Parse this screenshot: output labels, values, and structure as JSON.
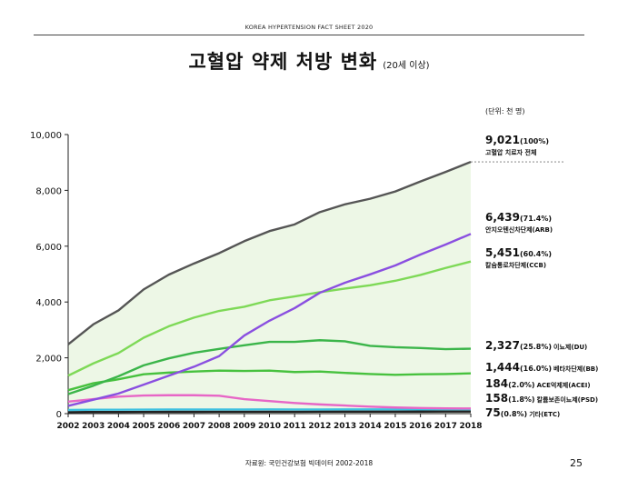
{
  "header": {
    "text": "KOREA HYPERTENSION FACT SHEET 2020"
  },
  "title": {
    "main": "고혈압 약제 처방 변화",
    "sub": "(20세 이상)"
  },
  "unit_label": "(단위: 천 명)",
  "footer": {
    "source": "자료원: 국민건강보험 빅데이터 2002-2018",
    "page": "25"
  },
  "chart_data": {
    "type": "line",
    "x": [
      2002,
      2003,
      2004,
      2005,
      2006,
      2007,
      2008,
      2009,
      2010,
      2011,
      2012,
      2013,
      2014,
      2015,
      2016,
      2017,
      2018
    ],
    "ylim": [
      0,
      10000
    ],
    "yticks": [
      "0",
      "2,000",
      "4,000",
      "6,000",
      "8,000",
      "10,000"
    ],
    "ytick_values": [
      0,
      2000,
      4000,
      6000,
      8000,
      10000
    ],
    "grid": false,
    "series": [
      {
        "name": "고혈압 치료자 전체",
        "label_value": "9,021",
        "label_pct": "(100%)",
        "color": "#555555",
        "fill": "#edf7e6",
        "values": [
          2480,
          3200,
          3700,
          4450,
          4980,
          5380,
          5750,
          6180,
          6540,
          6780,
          7220,
          7500,
          7700,
          7960,
          8320,
          8660,
          9021
        ]
      },
      {
        "name": "안지오텐신차단제(ARB)",
        "label_value": "6,439",
        "label_pct": "(71.4%)",
        "color": "#8a4fe0",
        "values": [
          280,
          500,
          720,
          1040,
          1360,
          1680,
          2060,
          2800,
          3330,
          3780,
          4330,
          4690,
          4990,
          5310,
          5700,
          6060,
          6439
        ]
      },
      {
        "name": "칼슘통로차단제(CCB)",
        "label_value": "5,451",
        "label_pct": "(60.4%)",
        "color": "#7ed957",
        "values": [
          1360,
          1800,
          2170,
          2720,
          3130,
          3440,
          3680,
          3830,
          4060,
          4200,
          4350,
          4480,
          4600,
          4760,
          4970,
          5220,
          5451
        ]
      },
      {
        "name": "이뇨제(DU)",
        "label_value": "2,327",
        "label_pct": "(25.8%)",
        "color": "#3bb54a",
        "values": [
          700,
          1000,
          1340,
          1730,
          1980,
          2180,
          2320,
          2450,
          2570,
          2570,
          2630,
          2590,
          2430,
          2380,
          2350,
          2310,
          2327
        ]
      },
      {
        "name": "베타차단제(BB)",
        "label_value": "1,444",
        "label_pct": "(16.0%)",
        "color": "#47c13e",
        "values": [
          840,
          1090,
          1230,
          1410,
          1470,
          1510,
          1540,
          1530,
          1540,
          1490,
          1510,
          1460,
          1420,
          1390,
          1410,
          1420,
          1444
        ]
      },
      {
        "name": "ACE억제제(ACEI)",
        "label_value": "184",
        "label_pct": "(2.0%)",
        "color": "#e766c6",
        "values": [
          430,
          520,
          610,
          650,
          660,
          660,
          640,
          520,
          450,
          380,
          330,
          290,
          250,
          220,
          200,
          190,
          184
        ]
      },
      {
        "name": "칼륨보존이뇨제(PSD)",
        "label_value": "158",
        "label_pct": "(1.8%)",
        "color": "#3ec1e0",
        "values": [
          130,
          140,
          140,
          145,
          150,
          150,
          150,
          150,
          152,
          150,
          150,
          152,
          152,
          153,
          155,
          156,
          158
        ]
      },
      {
        "name": "기타(ETC)",
        "label_value": "75",
        "label_pct": "(0.8%)",
        "color": "#222222",
        "values": [
          55,
          58,
          60,
          62,
          65,
          65,
          66,
          66,
          68,
          68,
          70,
          70,
          71,
          72,
          73,
          74,
          75
        ]
      }
    ]
  }
}
